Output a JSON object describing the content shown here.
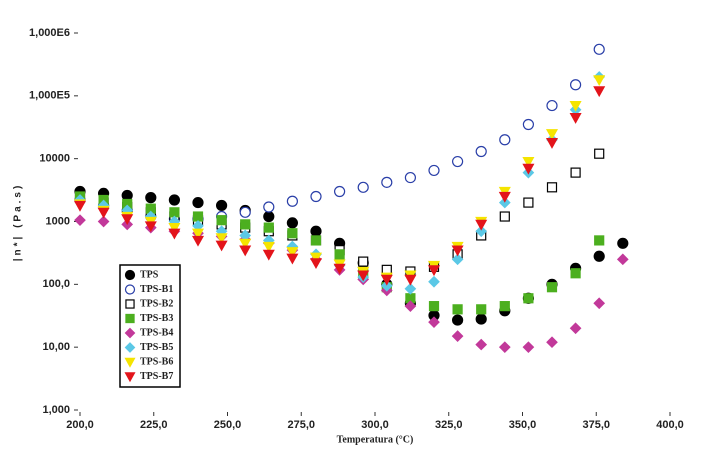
{
  "chart_data": {
    "type": "scatter",
    "xlabel": "Temperatura (°C)",
    "ylabel": "|n*| (Pa.s)",
    "log_y": true,
    "xlim": [
      200,
      400
    ],
    "xticks": [
      {
        "value": 200,
        "label": "200,0"
      },
      {
        "value": 225,
        "label": "225,0"
      },
      {
        "value": 250,
        "label": "250,0"
      },
      {
        "value": 275,
        "label": "275,0"
      },
      {
        "value": 300,
        "label": "300,0"
      },
      {
        "value": 325,
        "label": "325,0"
      },
      {
        "value": 350,
        "label": "350,0"
      },
      {
        "value": 375,
        "label": "375,0"
      },
      {
        "value": 400,
        "label": "400,0"
      }
    ],
    "ylim": [
      1,
      1000000
    ],
    "yticks": [
      {
        "value": 1,
        "label": "1,000"
      },
      {
        "value": 10,
        "label": "10,00"
      },
      {
        "value": 100,
        "label": "100,0"
      },
      1000,
      10000,
      {
        "value": 100000,
        "label": "1,000E5"
      },
      {
        "value": 1000000,
        "label": "1,000E6"
      }
    ],
    "legend": "lower left",
    "x": [
      200,
      208,
      216,
      224,
      232,
      240,
      248,
      256,
      264,
      272,
      280,
      288,
      296,
      304,
      312,
      320,
      328,
      336,
      344,
      352,
      360,
      368,
      376,
      384
    ],
    "series": [
      {
        "name": "TPS",
        "color": "#000000",
        "marker": "circle",
        "filled": true,
        "values": [
          3000,
          2800,
          2600,
          2400,
          2200,
          2000,
          1800,
          1500,
          1200,
          950,
          700,
          450,
          220,
          100,
          50,
          32,
          27,
          28,
          38,
          60,
          100,
          180,
          280,
          450
        ]
      },
      {
        "name": "TPS-B1",
        "color": "#2a3fa8",
        "marker": "circle",
        "filled": false,
        "values": [
          2200,
          1800,
          1500,
          1200,
          1100,
          1100,
          1200,
          1400,
          1700,
          2100,
          2500,
          3000,
          3500,
          4200,
          5000,
          6500,
          9000,
          13000,
          20000,
          35000,
          70000,
          150000,
          550000,
          null
        ]
      },
      {
        "name": "TPS-B2",
        "color": "#000000",
        "marker": "square",
        "filled": false,
        "values": [
          2400,
          2000,
          1700,
          1400,
          1200,
          1050,
          900,
          800,
          700,
          600,
          500,
          350,
          230,
          170,
          160,
          190,
          300,
          600,
          1200,
          2000,
          3500,
          6000,
          12000,
          null
        ]
      },
      {
        "name": "TPS-B3",
        "color": "#4caf1f",
        "marker": "square",
        "filled": true,
        "values": [
          2500,
          2200,
          1900,
          1600,
          1400,
          1200,
          1050,
          900,
          800,
          650,
          500,
          300,
          150,
          90,
          60,
          45,
          40,
          40,
          45,
          60,
          90,
          150,
          500,
          null
        ]
      },
      {
        "name": "TPS-B4",
        "color": "#c2399a",
        "marker": "diamond",
        "filled": true,
        "values": [
          1050,
          1000,
          900,
          800,
          700,
          650,
          580,
          520,
          450,
          350,
          250,
          170,
          120,
          80,
          45,
          25,
          15,
          11,
          10,
          10,
          12,
          20,
          50,
          250
        ]
      },
      {
        "name": "TPS-B5",
        "color": "#5bc8e6",
        "marker": "diamond",
        "filled": true,
        "values": [
          2200,
          1800,
          1500,
          1200,
          1000,
          850,
          700,
          600,
          500,
          400,
          300,
          200,
          130,
          95,
          85,
          110,
          250,
          700,
          2000,
          6000,
          20000,
          60000,
          200000,
          null
        ]
      },
      {
        "name": "TPS-B6",
        "color": "#f5e400",
        "marker": "triangle",
        "filled": true,
        "values": [
          1900,
          1500,
          1200,
          1000,
          800,
          650,
          550,
          450,
          400,
          330,
          270,
          210,
          160,
          130,
          140,
          200,
          400,
          1000,
          3000,
          9000,
          25000,
          70000,
          180000,
          null
        ]
      },
      {
        "name": "TPS-B7",
        "color": "#e3141b",
        "marker": "triangle",
        "filled": true,
        "values": [
          1800,
          1400,
          1100,
          850,
          650,
          500,
          420,
          350,
          300,
          260,
          220,
          180,
          140,
          120,
          120,
          170,
          350,
          900,
          2500,
          7000,
          18000,
          45000,
          120000,
          null
        ]
      }
    ]
  }
}
